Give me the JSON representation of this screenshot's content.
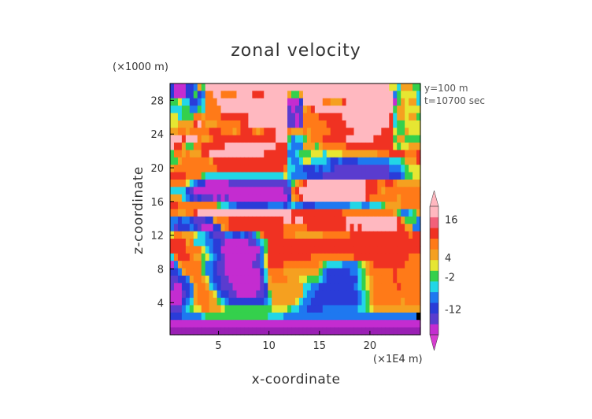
{
  "chart_data": {
    "type": "heatmap",
    "title": "zonal velocity",
    "xlabel": "x-coordinate",
    "ylabel": "z-coordinate",
    "x_unit": "(×1E4 m)",
    "y_unit": "(×1000 m)",
    "annotations": [
      "y=100  m",
      "t=10700 sec"
    ],
    "x_ticks": [
      5,
      10,
      15,
      20
    ],
    "y_ticks": [
      4,
      8,
      12,
      16,
      20,
      24,
      28
    ],
    "xlim": [
      0.2,
      25
    ],
    "ylim": [
      0.2,
      30
    ],
    "colorbar": {
      "labels": [
        "16",
        "4",
        "-2",
        "-12"
      ],
      "label_values": [
        16,
        4,
        -2,
        -12
      ],
      "levels": [
        -20,
        -16,
        -12,
        -8,
        -4,
        -2,
        0,
        2,
        4,
        8,
        12,
        16,
        20
      ],
      "colors": [
        "#9a1fb4",
        "#c42cd0",
        "#5a3ccf",
        "#2a3cd8",
        "#1e78f0",
        "#22d6e6",
        "#34d04c",
        "#e6e632",
        "#f5a020",
        "#ff7a18",
        "#f03222",
        "#f2607a",
        "#ffb8c0"
      ],
      "extend_low_color": "#d63cd0",
      "extend_high_color": "#ffb8c0"
    },
    "field_rows": [
      "DBBBDDEIGSSTTTTTSSSTTTSSSTTTTTSSSSSSSTTTTTTSSSSSSSTTTTTTHHFIIIGG",
      "DBBBDDGDEJJQQJJJJQQQQKKKQQQRRRIGGITTTTTTSSRRQQQQRRRSTTTTTEGHHHHF",
      "GGHFFDDEFJJJQRRRRSSSSSRRSSSRRRBBBDSSSRRJJIIIKQQQRRRSSSSSSBGIHIIF",
      "FFFGGEEGFJJJJQRRRRRRRSSSSRQQQRCBCCIJKRSSSSRRQQQQQRSSSSSSRGIIHHHH",
      "HHFGGGJJIJJJJKKKKKKKQQQQQQQRRQCCBCJJJJKKKKKKQQQRRRRRRRQQKFIIHIIG",
      "HHIIIIKQJIIIJJJJJJKKQQQQQQQRRQCCBCJJJJJJKKKKKQQRRRRRRRQQKFGGHHHH",
      "IIJJIJJJJJKKKJJJIJKKKJIJKKKRRRJIIIJIJJJJJKKKKKKRRRRRQQKKKHGGIHHH",
      "QQQKQRRJIIJKKKKKKKKKKKKKKKKQQQGEFFGIJJJKKKKKKQQQQQQQKKKKKGIIGGGG",
      "QKKIGGJJKKKKKKQQQQQQQQQQQQQKKKFEEEIIIGIJJJJJJKKKKKKKKKKKKHGHHIII",
      "GJJIJIIIKKQQQQQQQQQQQQQQKKKKKKEEFGGGHHHFHHHHIIIIIIIIIJJJKKKKJJJK",
      "GGIJJJJJJJIKKKKKKKKKKKKKKKKKKKFEEFHHFFFFEDDEDDDDEEEEEEEEFFFGIIIK",
      "IJJJJJJJJJJJKKKKKKKKKKKKKKKKKJFFEEDDDEDEEDCCCCCCCCCCCCCCEEEFGHHH",
      "KKKKJJJJGFFFFFFFFFFFFFFFFFFFFHFEEEEDDDDCCCCCCCCCCCCCCCCCDDDEGGHH",
      "JJJJHFEDDBBBBBBCCCCCCCCCCCCCCCEGIJKQRSSSSSSSSSRRQQKKKJJKKJIIIIII",
      "FFFFDCBBBBBBBBBBBBBBBBBBBBBBBCCJKQRRSSSSSSSSSRRRQQKKKJIJJJJJJJJJ",
      "IIIFEDCDCCCBCBCBBBBBBBBBBBBBBBDIJKQQQRRSSSSSSRRQQQKJJJJJJJIJJJJJ",
      "KKJJJJJJJJJJGFFEEDDDDDDDDEEEEDEFEEDDDEEEEEEEEEFFFEEFFFGIIIIJJJJJ",
      "JJIIJJKQQRSSSSSSSSSRRRRRRRQQQQQKKKKKKKKKKKKKJJJJJJJJJJJJJIGEEFGI",
      "EEDEEDCCCDDIJJJKKKKKKKKKKKKKKQQKQQKKKKKKKKKKKQQQQQQQRRRRQQKIGGGE",
      "ECDDDEDCBBBDDIJKKKKKKKKKKKKKKJJJJJJKKKKKKKKKKQKQKQQQQQQQQQKKIIEE",
      "HJJIIIHFFEDCCCEEDDEDCEGJKKKKKJJJIIIIIIIJJJJJJJKKKKKKKKKKKKKKKJKK",
      "KKKKIJFFFEEDDCBBBBBBCCEFGKKKKKKKKKKKKKKKKKKKKKKKKKKKKKKKKKKKKKKK",
      "KKKKJJJJHFEDDBBBBBBBBBBEGKKKKKKKKKKKKKKKKKKKKKKKKKKKKKKKKKKKKKKK",
      "FJKKKJIIGHFEDCBBBBBBBBCEHKKKKKKKKKKKJJJJJJJJJJJKKKKKKKKKKKKKKJJJ",
      "BEIJJJJJGEEDCCBBBBBBBCCEHKKKKJJJJJJJJJIGFFFFEEEEGHIJKKKKKKKKJJJJ",
      "DDEIJJJJGEEDCCBBBBBBBBBDFJJJJIIIIIIIIIGEDDDDDDEEFGIJJJJJJKJJJJJJ",
      "CCDDEIJJIHEDDCCBBBBBBBBCFIJJJJIIIHHGGGFEDDDDDDDDFGHIJJJJJKJJJJJJ",
      "CBBDDEIJJIFEDCCCBBBBBBBCDIIIIIIIIIFFEEDDDDDDDDDEFGHIJJJJJJKJJJJJ",
      "BBBCDEIJJJIHEDDCCBBBBBCCDGIIIIIIIIFEEDDDDDDDDDDDEFGIJJJJJJJJJJJJ",
      "BBBDEFIJJJIIGFEDDDDDDDDDEFIIIIIIHFEEDDDDDDDDDDDDEFGIJJJJJJJIJJJJ",
      "CCCEFGHHJJIIIHGGGGGGGGGGGGHHHHGFFEEDDDDEEEEEEEEEFFGHIIIIIIIIIIII",
      "DDDEEEEEFGGGGGGGGGGGGGGGGFFFFEEEEEEEEEEEEEEEEEEEEEEEEEEEEEEEEEE",
      "BBBBBBBBBBBBBBBBBBBBBBBBBBBBBBBBBBBBBBBBBBBBBBBBBBBBBBBBBBBBBBBB",
      "AAAAAAAAAAAAAAAAAAAAAAAAAAAAAAAAAAAAAAAAAAAAAAAAAAAAAAAAAAAAAAAA"
    ],
    "grid": false,
    "legend": "colorbar-right"
  }
}
